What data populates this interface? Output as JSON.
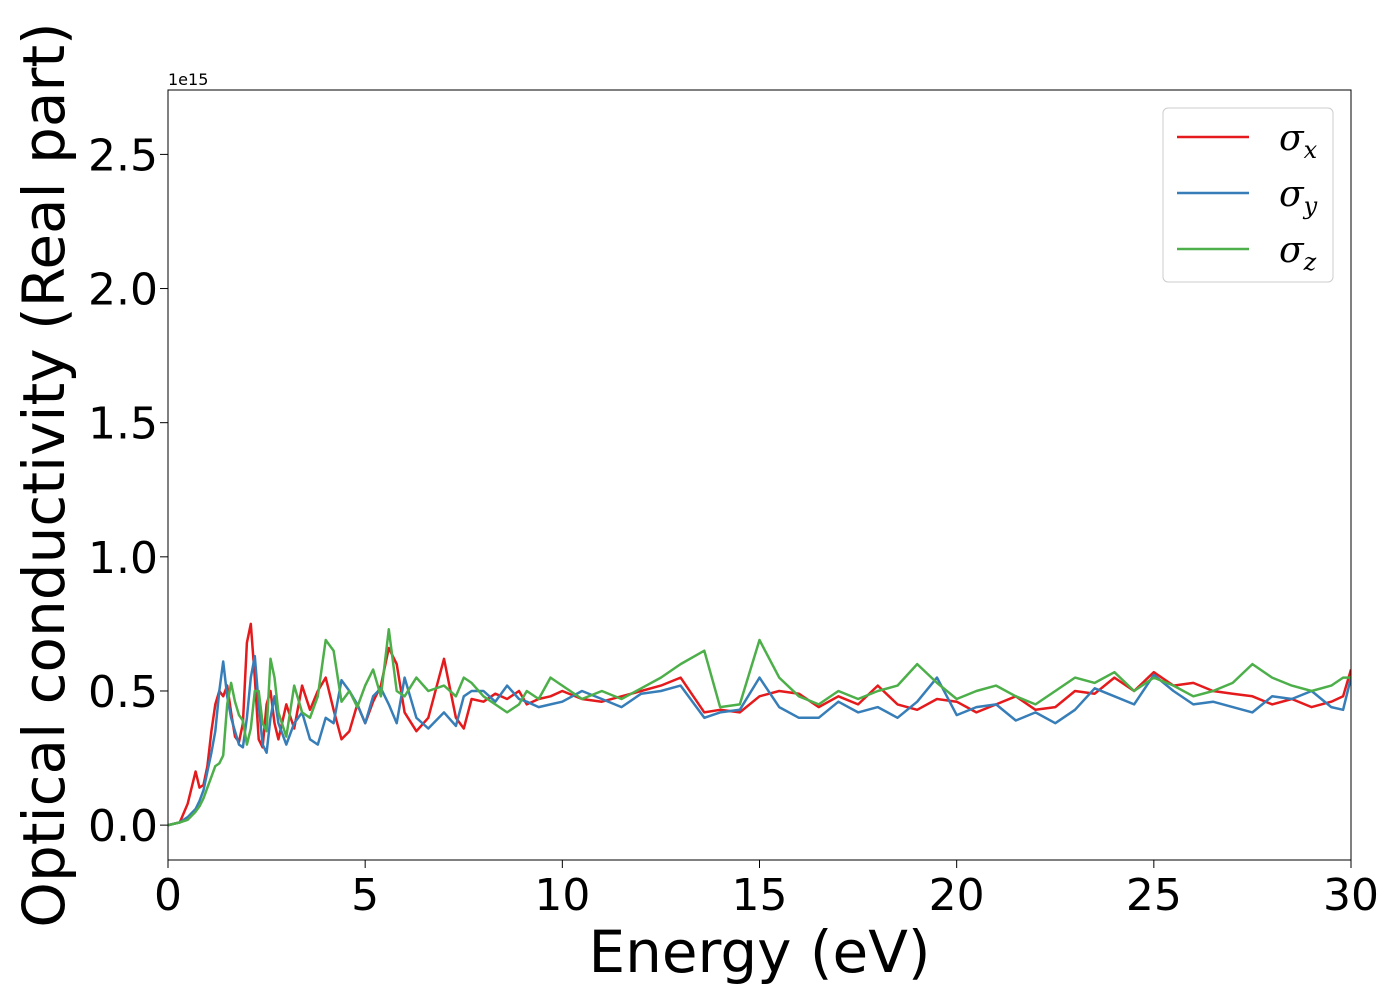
{
  "chart_data": {
    "type": "line",
    "title": "",
    "xlabel": "Energy (eV)",
    "ylabel": "Optical conductivity (Real part)",
    "y_offset_label": "1e15",
    "xlim": [
      0,
      30
    ],
    "ylim": [
      -0.13,
      2.74
    ],
    "xticks": [
      0,
      5,
      10,
      15,
      20,
      25,
      30
    ],
    "xtick_labels": [
      "0",
      "5",
      "10",
      "15",
      "20",
      "25",
      "30"
    ],
    "yticks": [
      0.0,
      0.5,
      1.0,
      1.5,
      2.0,
      2.5
    ],
    "ytick_labels": [
      "0.0",
      "0.5",
      "1.0",
      "1.5",
      "2.0",
      "2.5"
    ],
    "grid": false,
    "legend_position": "top-right",
    "series": [
      {
        "name": "σx",
        "symbol": "σ",
        "subscript": "x",
        "color": "#e41a1c",
        "x": [
          0,
          0.3,
          0.5,
          0.7,
          0.8,
          0.9,
          1.0,
          1.1,
          1.2,
          1.3,
          1.4,
          1.5,
          1.6,
          1.7,
          1.8,
          1.9,
          2.0,
          2.1,
          2.2,
          2.3,
          2.4,
          2.5,
          2.6,
          2.7,
          2.8,
          3.0,
          3.2,
          3.4,
          3.6,
          3.8,
          4.0,
          4.2,
          4.4,
          4.6,
          4.8,
          5.0,
          5.2,
          5.4,
          5.6,
          5.8,
          6.0,
          6.3,
          6.6,
          7.0,
          7.3,
          7.5,
          7.7,
          8.0,
          8.3,
          8.6,
          8.9,
          9.1,
          9.4,
          9.7,
          10.0,
          10.5,
          11.0,
          11.5,
          12.0,
          12.5,
          13.0,
          13.6,
          14.0,
          14.5,
          15.0,
          15.5,
          16.0,
          16.5,
          17.0,
          17.5,
          18.0,
          18.5,
          19.0,
          19.5,
          20.0,
          20.5,
          21.0,
          21.5,
          22.0,
          22.5,
          23.0,
          23.5,
          24.0,
          24.5,
          25.0,
          25.5,
          26.0,
          26.5,
          27.0,
          27.5,
          28.0,
          28.5,
          29.0,
          29.5,
          29.8,
          30.0
        ],
        "values": [
          0.0,
          0.01,
          0.08,
          0.2,
          0.14,
          0.15,
          0.22,
          0.35,
          0.45,
          0.5,
          0.48,
          0.52,
          0.42,
          0.33,
          0.31,
          0.38,
          0.68,
          0.75,
          0.55,
          0.32,
          0.29,
          0.45,
          0.5,
          0.38,
          0.32,
          0.45,
          0.36,
          0.52,
          0.43,
          0.5,
          0.55,
          0.43,
          0.32,
          0.35,
          0.45,
          0.38,
          0.46,
          0.52,
          0.66,
          0.6,
          0.42,
          0.35,
          0.4,
          0.62,
          0.4,
          0.36,
          0.47,
          0.46,
          0.49,
          0.47,
          0.5,
          0.45,
          0.47,
          0.48,
          0.5,
          0.47,
          0.46,
          0.48,
          0.5,
          0.52,
          0.55,
          0.42,
          0.43,
          0.42,
          0.48,
          0.5,
          0.49,
          0.44,
          0.48,
          0.45,
          0.52,
          0.45,
          0.43,
          0.47,
          0.46,
          0.42,
          0.45,
          0.48,
          0.43,
          0.44,
          0.5,
          0.49,
          0.55,
          0.5,
          0.57,
          0.52,
          0.53,
          0.5,
          0.49,
          0.48,
          0.45,
          0.47,
          0.44,
          0.46,
          0.48,
          0.58
        ]
      },
      {
        "name": "σy",
        "symbol": "σ",
        "subscript": "y",
        "color": "#377eb8",
        "x": [
          0,
          0.3,
          0.5,
          0.7,
          0.8,
          0.9,
          1.0,
          1.1,
          1.2,
          1.3,
          1.4,
          1.5,
          1.6,
          1.7,
          1.8,
          1.9,
          2.0,
          2.1,
          2.2,
          2.3,
          2.4,
          2.5,
          2.6,
          2.7,
          2.8,
          3.0,
          3.2,
          3.4,
          3.6,
          3.8,
          4.0,
          4.2,
          4.4,
          4.6,
          4.8,
          5.0,
          5.2,
          5.4,
          5.6,
          5.8,
          6.0,
          6.3,
          6.6,
          7.0,
          7.3,
          7.5,
          7.7,
          8.0,
          8.3,
          8.6,
          8.9,
          9.1,
          9.4,
          9.7,
          10.0,
          10.5,
          11.0,
          11.5,
          12.0,
          12.5,
          13.0,
          13.6,
          14.0,
          14.5,
          15.0,
          15.5,
          16.0,
          16.5,
          17.0,
          17.5,
          18.0,
          18.5,
          19.0,
          19.5,
          20.0,
          20.5,
          21.0,
          21.5,
          22.0,
          22.5,
          23.0,
          23.5,
          24.0,
          24.5,
          25.0,
          25.5,
          26.0,
          26.5,
          27.0,
          27.5,
          28.0,
          28.5,
          29.0,
          29.5,
          29.8,
          30.0
        ],
        "values": [
          0.0,
          0.01,
          0.03,
          0.06,
          0.09,
          0.13,
          0.2,
          0.27,
          0.35,
          0.5,
          0.61,
          0.48,
          0.4,
          0.35,
          0.3,
          0.29,
          0.4,
          0.55,
          0.63,
          0.45,
          0.3,
          0.27,
          0.4,
          0.48,
          0.38,
          0.3,
          0.38,
          0.42,
          0.32,
          0.3,
          0.4,
          0.38,
          0.54,
          0.5,
          0.45,
          0.38,
          0.48,
          0.51,
          0.45,
          0.38,
          0.55,
          0.4,
          0.36,
          0.42,
          0.37,
          0.48,
          0.5,
          0.5,
          0.46,
          0.52,
          0.47,
          0.46,
          0.44,
          0.45,
          0.46,
          0.5,
          0.47,
          0.44,
          0.49,
          0.5,
          0.52,
          0.4,
          0.42,
          0.43,
          0.55,
          0.44,
          0.4,
          0.4,
          0.46,
          0.42,
          0.44,
          0.4,
          0.46,
          0.55,
          0.41,
          0.44,
          0.45,
          0.39,
          0.42,
          0.38,
          0.43,
          0.51,
          0.48,
          0.45,
          0.56,
          0.5,
          0.45,
          0.46,
          0.44,
          0.42,
          0.48,
          0.47,
          0.5,
          0.44,
          0.43,
          0.55
        ]
      },
      {
        "name": "σz",
        "symbol": "σ",
        "subscript": "z",
        "color": "#4daf4a",
        "x": [
          0,
          0.3,
          0.5,
          0.7,
          0.8,
          0.9,
          1.0,
          1.1,
          1.2,
          1.3,
          1.4,
          1.5,
          1.6,
          1.7,
          1.8,
          1.9,
          2.0,
          2.1,
          2.2,
          2.3,
          2.4,
          2.5,
          2.6,
          2.7,
          2.8,
          3.0,
          3.2,
          3.4,
          3.6,
          3.8,
          4.0,
          4.2,
          4.4,
          4.6,
          4.8,
          5.0,
          5.2,
          5.4,
          5.6,
          5.8,
          6.0,
          6.3,
          6.6,
          7.0,
          7.3,
          7.5,
          7.7,
          8.0,
          8.3,
          8.6,
          8.9,
          9.1,
          9.4,
          9.7,
          10.0,
          10.5,
          11.0,
          11.5,
          12.0,
          12.5,
          13.0,
          13.6,
          14.0,
          14.5,
          15.0,
          15.5,
          16.0,
          16.5,
          17.0,
          17.5,
          18.0,
          18.5,
          19.0,
          19.5,
          20.0,
          20.5,
          21.0,
          21.5,
          22.0,
          22.5,
          23.0,
          23.5,
          24.0,
          24.5,
          25.0,
          25.5,
          26.0,
          26.5,
          27.0,
          27.5,
          28.0,
          28.5,
          29.0,
          29.5,
          29.8,
          30.0
        ],
        "values": [
          0.0,
          0.01,
          0.02,
          0.05,
          0.07,
          0.1,
          0.14,
          0.18,
          0.22,
          0.23,
          0.26,
          0.45,
          0.53,
          0.46,
          0.41,
          0.39,
          0.3,
          0.36,
          0.5,
          0.5,
          0.38,
          0.35,
          0.62,
          0.55,
          0.42,
          0.33,
          0.52,
          0.42,
          0.4,
          0.48,
          0.69,
          0.65,
          0.46,
          0.5,
          0.44,
          0.52,
          0.58,
          0.48,
          0.73,
          0.5,
          0.48,
          0.55,
          0.5,
          0.52,
          0.48,
          0.55,
          0.53,
          0.48,
          0.45,
          0.42,
          0.45,
          0.5,
          0.47,
          0.55,
          0.52,
          0.47,
          0.5,
          0.47,
          0.51,
          0.55,
          0.6,
          0.65,
          0.44,
          0.45,
          0.69,
          0.55,
          0.48,
          0.45,
          0.5,
          0.47,
          0.5,
          0.52,
          0.6,
          0.53,
          0.47,
          0.5,
          0.52,
          0.48,
          0.45,
          0.5,
          0.55,
          0.53,
          0.57,
          0.5,
          0.55,
          0.52,
          0.48,
          0.5,
          0.53,
          0.6,
          0.55,
          0.52,
          0.5,
          0.52,
          0.55,
          0.55
        ]
      }
    ]
  }
}
